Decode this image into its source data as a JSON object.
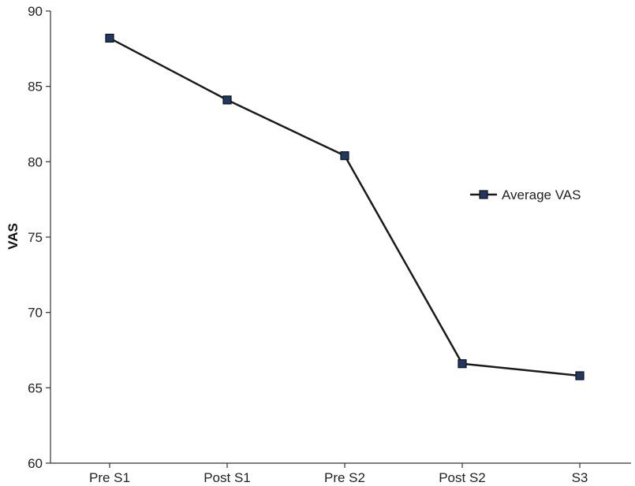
{
  "chart_data": {
    "type": "line",
    "title": "",
    "xlabel": "",
    "ylabel": "VAS",
    "categories": [
      "Pre S1",
      "Post S1",
      "Pre S2",
      "Post S2",
      "S3"
    ],
    "series": [
      {
        "name": "Average VAS",
        "values": [
          88.2,
          84.1,
          80.4,
          66.6,
          65.8
        ],
        "color": "#1a1a1a",
        "marker_fill": "#1f3864",
        "marker": "square"
      }
    ],
    "ylim": [
      60,
      90
    ],
    "yticks": [
      60,
      65,
      70,
      75,
      80,
      85,
      90
    ],
    "grid": false,
    "legend_position": "right"
  }
}
